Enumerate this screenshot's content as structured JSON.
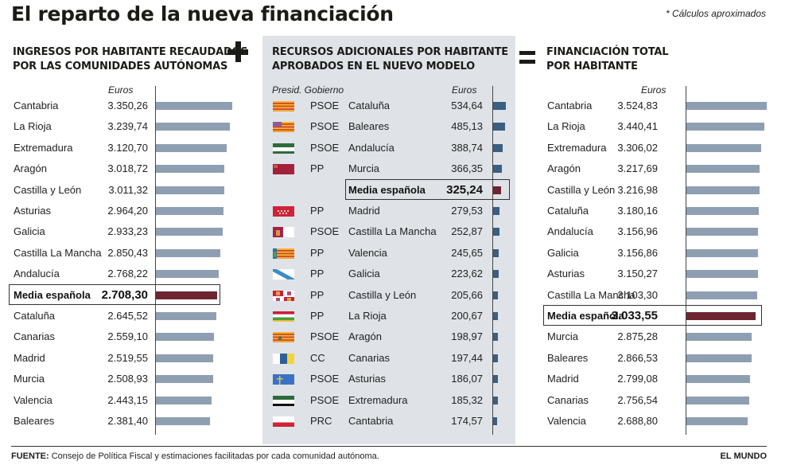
{
  "title": "El reparto de la nueva financiación",
  "note": "* Cálculos aproximados",
  "operators": {
    "plus": "+",
    "equals": "="
  },
  "footer": {
    "source_label": "FUENTE:",
    "source_text": "Consejo de Política Fiscal y estimaciones facilitadas por cada comunidad autónoma.",
    "brand": "EL MUNDO"
  },
  "colors": {
    "bar_gray": "#8f9fb2",
    "bar_blue": "#3b5f82",
    "bar_average": "#6d2631",
    "middle_panel_bg": "#dfe3e8"
  },
  "chart_data": [
    {
      "type": "bar",
      "orientation": "horizontal",
      "title": "INGRESOS POR HABITANTE RECAUDADOS POR LAS COMUNIDADES AUTÓNOMAS",
      "title_lines": [
        "INGRESOS POR HABITANTE RECAUDADOS",
        "POR LAS COMUNIDADES AUTÓNOMAS"
      ],
      "unit_label": "Euros",
      "highlight": "Media española",
      "categories": [
        "Cantabria",
        "La Rioja",
        "Extremadura",
        "Aragón",
        "Castilla y León",
        "Asturias",
        "Galicia",
        "Castilla La Mancha",
        "Andalucía",
        "Media española",
        "Cataluña",
        "Canarias",
        "Madrid",
        "Murcia",
        "Valencia",
        "Baleares"
      ],
      "values": [
        3350.26,
        3239.74,
        3120.7,
        3018.72,
        3011.32,
        2964.2,
        2933.23,
        2850.43,
        2768.22,
        2708.3,
        2645.52,
        2559.1,
        2519.55,
        2508.93,
        2443.15,
        2381.4
      ],
      "labels": [
        "3.350,26",
        "3.239,74",
        "3.120,70",
        "3.018,72",
        "3.011,32",
        "2.964,20",
        "2.933,23",
        "2.850,43",
        "2.768,22",
        "2.708,30",
        "2.645,52",
        "2.559,10",
        "2.519,55",
        "2.508,93",
        "2.443,15",
        "2.381,40"
      ],
      "xlim": [
        0,
        3500
      ]
    },
    {
      "type": "bar",
      "orientation": "horizontal",
      "title": "RECURSOS ADICIONALES POR HABITANTE APROBADOS EN EL NUEVO MODELO",
      "title_lines": [
        "RECURSOS ADICIONALES POR HABITANTE",
        "APROBADOS EN EL NUEVO MODELO"
      ],
      "unit_label": "Euros",
      "party_header": "Presid. Gobierno",
      "highlight": "Media española",
      "categories": [
        "Cataluña",
        "Baleares",
        "Andalucía",
        "Murcia",
        "Media española",
        "Madrid",
        "Castilla La Mancha",
        "Valencia",
        "Galicia",
        "Castilla y León",
        "La Rioja",
        "Aragón",
        "Canarias",
        "Asturias",
        "Extremadura",
        "Cantabria"
      ],
      "parties": [
        "PSOE",
        "PSOE",
        "PSOE",
        "PP",
        "",
        "PP",
        "PSOE",
        "PP",
        "PP",
        "PP",
        "PP",
        "PSOE",
        "CC",
        "PSOE",
        "PSOE",
        "PRC"
      ],
      "flags": [
        "cataluna-flag",
        "baleares-flag",
        "andalucia-flag",
        "murcia-flag",
        "",
        "madrid-flag",
        "castilla-la-mancha-flag",
        "valencia-flag",
        "galicia-flag",
        "castilla-y-leon-flag",
        "la-rioja-flag",
        "aragon-flag",
        "canarias-flag",
        "asturias-flag",
        "extremadura-flag",
        "cantabria-flag"
      ],
      "values": [
        534.64,
        485.13,
        388.74,
        366.35,
        325.24,
        279.53,
        252.87,
        245.65,
        223.62,
        205.66,
        200.67,
        198.97,
        197.44,
        186.07,
        185.32,
        174.57
      ],
      "labels": [
        "534,64",
        "485,13",
        "388,74",
        "366,35",
        "325,24",
        "279,53",
        "252,87",
        "245,65",
        "223,62",
        "205,66",
        "200,67",
        "198,97",
        "197,44",
        "186,07",
        "185,32",
        "174,57"
      ],
      "xlim": [
        0,
        3500
      ]
    },
    {
      "type": "bar",
      "orientation": "horizontal",
      "title": "FINANCIACIÓN TOTAL POR HABITANTE",
      "title_lines": [
        "FINANCIACIÓN TOTAL",
        "POR HABITANTE"
      ],
      "unit_label": "Euros",
      "highlight": "Media española",
      "categories": [
        "Cantabria",
        "La Rioja",
        "Extremadura",
        "Aragón",
        "Castilla y León",
        "Cataluña",
        "Andalucía",
        "Galicia",
        "Asturias",
        "Castilla La Mancha",
        "Media española",
        "Murcia",
        "Baleares",
        "Madrid",
        "Canarias",
        "Valencia"
      ],
      "values": [
        3524.83,
        3440.41,
        3306.02,
        3217.69,
        3216.98,
        3180.16,
        3156.96,
        3156.86,
        3150.27,
        3103.3,
        3033.55,
        2875.28,
        2866.53,
        2799.08,
        2756.54,
        2688.8
      ],
      "labels": [
        "3.524,83",
        "3.440,41",
        "3.306,02",
        "3.217,69",
        "3.216,98",
        "3.180,16",
        "3.156,96",
        "3.156,86",
        "3.150,27",
        "3.103,30",
        "3.033,55",
        "2.875,28",
        "2.866,53",
        "2.799,08",
        "2.756,54",
        "2.688,80"
      ],
      "xlim": [
        0,
        3500
      ]
    }
  ]
}
